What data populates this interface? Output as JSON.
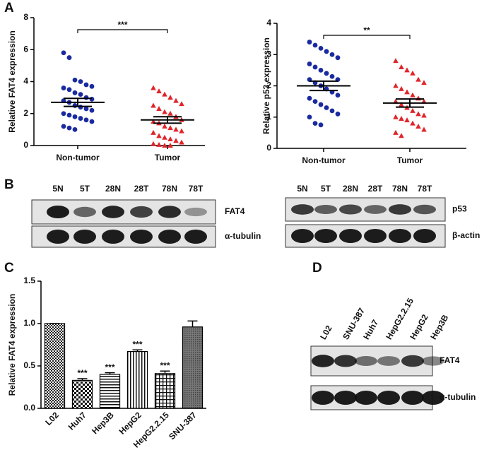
{
  "panels": [
    "A",
    "B",
    "C",
    "D"
  ],
  "chart_data": [
    {
      "type": "dotplot",
      "ylabel": "Relative FAT4 expression",
      "categories": [
        "Non-tumor",
        "Tumor"
      ],
      "points": [
        [
          5.8,
          5.5,
          4.1,
          4.0,
          3.8,
          3.7,
          3.6,
          3.5,
          3.3,
          3.2,
          3.0,
          2.9,
          2.8,
          2.7,
          2.5,
          2.4,
          2.3,
          2.2,
          2.0,
          1.9,
          1.8,
          1.7,
          1.6,
          1.5,
          1.2,
          1.1,
          1.0
        ],
        [
          3.6,
          3.4,
          3.2,
          3.0,
          2.8,
          2.6,
          2.5,
          2.3,
          2.1,
          2.0,
          1.8,
          1.6,
          1.5,
          1.4,
          1.2,
          1.1,
          1.0,
          0.9,
          0.8,
          0.6,
          0.5,
          0.4,
          0.3,
          0.2,
          0.1,
          0.05,
          0,
          0
        ]
      ],
      "colors": [
        "#1a2aa0",
        "#e0252b"
      ],
      "markers": [
        "circle",
        "triangle"
      ],
      "means": [
        2.7,
        1.6
      ],
      "sems": [
        0.25,
        0.2
      ],
      "significance": "***",
      "ylim": [
        0,
        8
      ],
      "yticks": [
        0,
        2,
        4,
        6,
        8
      ]
    },
    {
      "type": "dotplot",
      "ylabel": "Relative p53 expression",
      "categories": [
        "Non-tumor",
        "Tumor"
      ],
      "points": [
        [
          3.4,
          3.3,
          3.2,
          3.1,
          3.0,
          2.9,
          2.7,
          2.6,
          2.5,
          2.4,
          2.3,
          2.2,
          2.2,
          2.1,
          2.0,
          1.9,
          1.8,
          1.7,
          1.6,
          1.5,
          1.4,
          1.3,
          1.2,
          1.1,
          1.0,
          0.8,
          0.75
        ],
        [
          2.8,
          2.6,
          2.5,
          2.4,
          2.2,
          2.1,
          2.0,
          1.9,
          1.8,
          1.7,
          1.6,
          1.5,
          1.5,
          1.4,
          1.3,
          1.2,
          1.1,
          1.05,
          1.0,
          0.95,
          0.9,
          0.8,
          0.7,
          0.6,
          0.5,
          0.4
        ]
      ],
      "colors": [
        "#1a2aa0",
        "#e0252b"
      ],
      "markers": [
        "circle",
        "triangle"
      ],
      "means": [
        2.0,
        1.45
      ],
      "sems": [
        0.15,
        0.13
      ],
      "significance": "**",
      "ylim": [
        0,
        4
      ],
      "yticks": [
        0,
        1,
        2,
        3,
        4
      ]
    },
    {
      "type": "bar",
      "ylabel": "Relative FAT4 expression",
      "categories": [
        "L02",
        "Huh7",
        "Hep3B",
        "HepG2",
        "HepG2.2.15",
        "SNU-387"
      ],
      "values": [
        1.0,
        0.33,
        0.4,
        0.67,
        0.41,
        0.96
      ],
      "errors": [
        0,
        0.02,
        0.02,
        0.02,
        0.03,
        0.07
      ],
      "annotations": [
        null,
        "***",
        "***",
        "***",
        "***",
        null
      ],
      "color": "#000000",
      "ylim": [
        0,
        1.5
      ],
      "yticks": [
        {
          "value": 0,
          "label": "0.0"
        },
        0.5,
        {
          "value": 1,
          "label": "1.0"
        },
        1.5
      ]
    }
  ],
  "blots": [
    {
      "lanes": [
        "5N",
        "5T",
        "28N",
        "28T",
        "78N",
        "78T"
      ],
      "rows": [
        "FAT4",
        "α-tubulin"
      ]
    },
    {
      "lanes": [
        "5N",
        "5T",
        "28N",
        "28T",
        "78N",
        "78T"
      ],
      "rows": [
        "p53",
        "β-actin"
      ]
    },
    {
      "lanes": [
        "L02",
        "SNU-387",
        "Huh7",
        "HepG2.2.15",
        "HepG2",
        "Hep3B"
      ],
      "rows": [
        "FAT4",
        "α-tubulin"
      ]
    }
  ]
}
